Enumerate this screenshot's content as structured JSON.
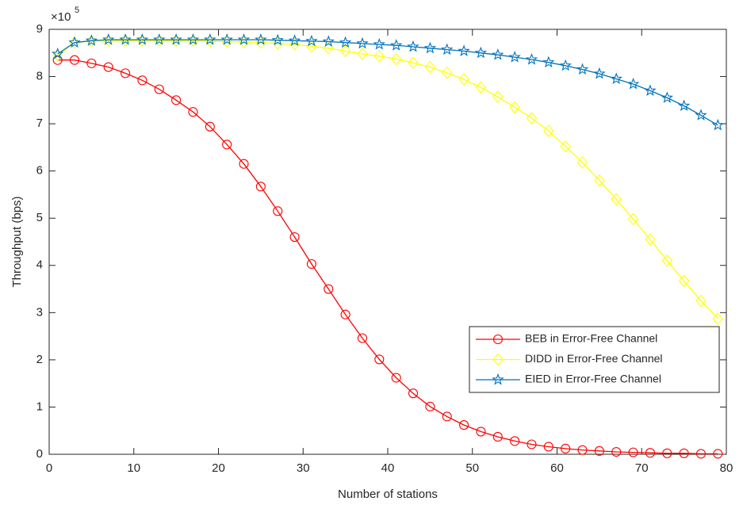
{
  "chart_data": {
    "type": "line",
    "x_label": "Number of stations",
    "y_label": "Throughput (bps)",
    "y_scale_base": "×10",
    "y_scale_exponent": "5",
    "x": [
      1,
      3,
      5,
      7,
      9,
      11,
      13,
      15,
      17,
      19,
      21,
      23,
      25,
      27,
      29,
      31,
      33,
      35,
      37,
      39,
      41,
      43,
      45,
      47,
      49,
      51,
      53,
      55,
      57,
      59,
      61,
      63,
      65,
      67,
      69,
      71,
      73,
      75,
      77,
      79
    ],
    "series": [
      {
        "name": "BEB in Error-Free Channel",
        "color": "#ff0000",
        "marker": "circle",
        "values": [
          8.35,
          8.35,
          8.28,
          8.2,
          8.07,
          7.92,
          7.73,
          7.5,
          7.25,
          6.94,
          6.56,
          6.15,
          5.67,
          5.15,
          4.6,
          4.03,
          3.5,
          2.96,
          2.46,
          2.01,
          1.62,
          1.29,
          1.01,
          0.8,
          0.62,
          0.48,
          0.37,
          0.28,
          0.21,
          0.16,
          0.12,
          0.09,
          0.07,
          0.05,
          0.04,
          0.03,
          0.02,
          0.02,
          0.01,
          0.01
        ]
      },
      {
        "name": "DIDD in Error-Free Channel",
        "color": "#ffff00",
        "marker": "diamond",
        "values": [
          8.45,
          8.72,
          8.75,
          8.76,
          8.76,
          8.76,
          8.76,
          8.76,
          8.76,
          8.75,
          8.74,
          8.73,
          8.72,
          8.7,
          8.68,
          8.64,
          8.6,
          8.54,
          8.48,
          8.43,
          8.37,
          8.29,
          8.2,
          8.08,
          7.94,
          7.77,
          7.57,
          7.35,
          7.12,
          6.85,
          6.52,
          6.18,
          5.8,
          5.4,
          4.98,
          4.55,
          4.1,
          3.67,
          3.25,
          2.87
        ]
      },
      {
        "name": "EIED in Error-Free Channel",
        "color": "#0072bd",
        "marker": "star",
        "values": [
          8.48,
          8.72,
          8.76,
          8.78,
          8.78,
          8.78,
          8.78,
          8.78,
          8.78,
          8.78,
          8.78,
          8.78,
          8.78,
          8.77,
          8.76,
          8.75,
          8.74,
          8.72,
          8.7,
          8.68,
          8.66,
          8.63,
          8.6,
          8.57,
          8.54,
          8.5,
          8.46,
          8.41,
          8.36,
          8.3,
          8.23,
          8.15,
          8.06,
          7.95,
          7.84,
          7.7,
          7.55,
          7.38,
          7.18,
          6.97
        ]
      }
    ],
    "xlim": [
      0,
      80
    ],
    "xticks": [
      0,
      10,
      20,
      30,
      40,
      50,
      60,
      70,
      80
    ],
    "ylim": [
      0,
      9
    ],
    "yticks": [
      0,
      1,
      2,
      3,
      4,
      5,
      6,
      7,
      8,
      9
    ],
    "grid": false,
    "legend": "lower right"
  }
}
